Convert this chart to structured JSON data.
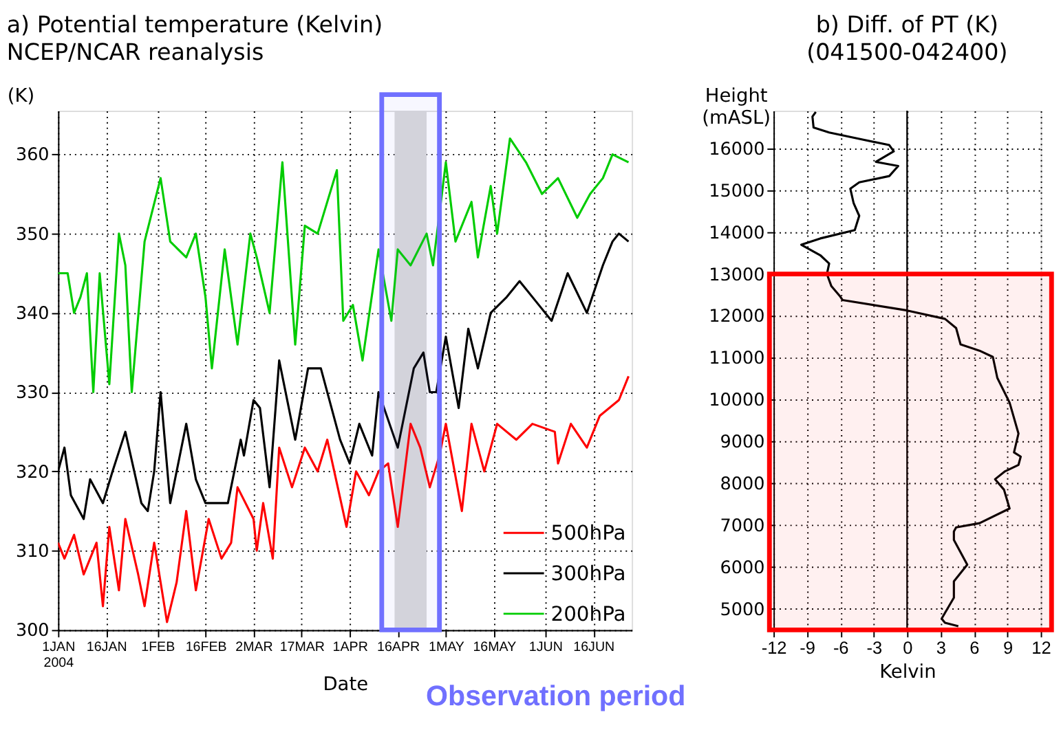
{
  "chart_data": [
    {
      "type": "line",
      "title": "a) Potential temperature (Kelvin)",
      "subtitle": "NCEP/NCAR reanalysis",
      "xlabel": "Date",
      "ylabel": "(K)",
      "xlim": [
        "2004-01-01",
        "2004-06-28"
      ],
      "xticks": [
        {
          "value": "2004-01-01",
          "label": "1JAN\n2004"
        },
        {
          "value": "2004-01-16",
          "label": "16JAN"
        },
        {
          "value": "2004-02-01",
          "label": "1FEB"
        },
        {
          "value": "2004-02-16",
          "label": "16FEB"
        },
        {
          "value": "2004-03-02",
          "label": "2MAR"
        },
        {
          "value": "2004-03-17",
          "label": "17MAR"
        },
        {
          "value": "2004-04-01",
          "label": "1APR"
        },
        {
          "value": "2004-04-16",
          "label": "16APR"
        },
        {
          "value": "2004-05-01",
          "label": "1MAY"
        },
        {
          "value": "2004-05-16",
          "label": "16MAY"
        },
        {
          "value": "2004-06-01",
          "label": "1JUN"
        },
        {
          "value": "2004-06-16",
          "label": "16JUN"
        }
      ],
      "ylim": [
        300,
        365.5
      ],
      "yticks": [
        300,
        310,
        320,
        330,
        340,
        350,
        360
      ],
      "grid": true,
      "legend": "bottom right",
      "line_style": "solid",
      "bands": [
        {
          "axis": "x",
          "from": "2004-04-15",
          "to": "2004-04-25",
          "color": "#d9d9d9"
        },
        {
          "axis": "x",
          "from": "2004-04-11",
          "to": "2004-04-29",
          "color": "#7070ff",
          "label": "Observation period"
        }
      ],
      "series": [
        {
          "name": "500hPa",
          "color": "#ff0000",
          "x": [
            "2004-01-01",
            "2004-01-03",
            "2004-01-06",
            "2004-01-09",
            "2004-01-13",
            "2004-01-15",
            "2004-01-17",
            "2004-01-20",
            "2004-01-22",
            "2004-01-26",
            "2004-01-28",
            "2004-01-31",
            "2004-02-04",
            "2004-02-07",
            "2004-02-10",
            "2004-02-13",
            "2004-02-17",
            "2004-02-21",
            "2004-02-24",
            "2004-02-26",
            "2004-03-02",
            "2004-03-03",
            "2004-03-05",
            "2004-03-08",
            "2004-03-10",
            "2004-03-14",
            "2004-03-18",
            "2004-03-22",
            "2004-03-25",
            "2004-03-31",
            "2004-04-03",
            "2004-04-07",
            "2004-04-10",
            "2004-04-13",
            "2004-04-16",
            "2004-04-20",
            "2004-04-23",
            "2004-04-26",
            "2004-04-29",
            "2004-05-01",
            "2004-05-06",
            "2004-05-09",
            "2004-05-13",
            "2004-05-17",
            "2004-05-23",
            "2004-05-28",
            "2004-06-04",
            "2004-06-05",
            "2004-06-09",
            "2004-06-14",
            "2004-06-18",
            "2004-06-24",
            "2004-06-27"
          ],
          "values": [
            311,
            309,
            312,
            307,
            311,
            303,
            313,
            305,
            314,
            307,
            303,
            311,
            301,
            306,
            315,
            305,
            314,
            309,
            311,
            318,
            314,
            310,
            316,
            309,
            323,
            318,
            323,
            320,
            324,
            313,
            320,
            317,
            320,
            321,
            313,
            326,
            323,
            318,
            322,
            326,
            315,
            326,
            320,
            326,
            324,
            326,
            325,
            321,
            326,
            323,
            327,
            329,
            332
          ]
        },
        {
          "name": "300hPa",
          "color": "#000000",
          "x": [
            "2004-01-01",
            "2004-01-03",
            "2004-01-05",
            "2004-01-09",
            "2004-01-11",
            "2004-01-15",
            "2004-01-18",
            "2004-01-22",
            "2004-01-27",
            "2004-01-29",
            "2004-01-31",
            "2004-02-02",
            "2004-02-05",
            "2004-02-10",
            "2004-02-13",
            "2004-02-16",
            "2004-02-23",
            "2004-02-27",
            "2004-02-28",
            "2004-03-02",
            "2004-03-04",
            "2004-03-07",
            "2004-03-10",
            "2004-03-15",
            "2004-03-19",
            "2004-03-23",
            "2004-03-29",
            "2004-04-01",
            "2004-04-04",
            "2004-04-08",
            "2004-04-10",
            "2004-04-16",
            "2004-04-21",
            "2004-04-24",
            "2004-04-26",
            "2004-04-28",
            "2004-05-01",
            "2004-05-05",
            "2004-05-08",
            "2004-05-11",
            "2004-05-15",
            "2004-05-20",
            "2004-05-24",
            "2004-05-30",
            "2004-06-03",
            "2004-06-08",
            "2004-06-14",
            "2004-06-19",
            "2004-06-22",
            "2004-06-24",
            "2004-06-27"
          ],
          "values": [
            320,
            323,
            317,
            314,
            319,
            316,
            320,
            325,
            316,
            315,
            320,
            330,
            316,
            326,
            319,
            316,
            316,
            324,
            322,
            329,
            328,
            318,
            334,
            324,
            333,
            333,
            324,
            321,
            326,
            322,
            330,
            323,
            333,
            335,
            330,
            330,
            337,
            328,
            338,
            333,
            340,
            342,
            344,
            341,
            339,
            345,
            340,
            346,
            349,
            350,
            349
          ]
        },
        {
          "name": "200hPa",
          "color": "#00cc00",
          "x": [
            "2004-01-01",
            "2004-01-04",
            "2004-01-06",
            "2004-01-08",
            "2004-01-10",
            "2004-01-12",
            "2004-01-14",
            "2004-01-17",
            "2004-01-20",
            "2004-01-22",
            "2004-01-24",
            "2004-01-28",
            "2004-02-02",
            "2004-02-05",
            "2004-02-10",
            "2004-02-13",
            "2004-02-16",
            "2004-02-18",
            "2004-02-22",
            "2004-02-26",
            "2004-03-01",
            "2004-03-03",
            "2004-03-07",
            "2004-03-11",
            "2004-03-15",
            "2004-03-18",
            "2004-03-22",
            "2004-03-28",
            "2004-03-30",
            "2004-04-02",
            "2004-04-05",
            "2004-04-10",
            "2004-04-14",
            "2004-04-16",
            "2004-04-20",
            "2004-04-25",
            "2004-04-27",
            "2004-05-01",
            "2004-05-04",
            "2004-05-09",
            "2004-05-11",
            "2004-05-15",
            "2004-05-17",
            "2004-05-21",
            "2004-05-26",
            "2004-05-31",
            "2004-06-05",
            "2004-06-11",
            "2004-06-15",
            "2004-06-19",
            "2004-06-22",
            "2004-06-27"
          ],
          "values": [
            345,
            345,
            340,
            342,
            345,
            330,
            345,
            331,
            350,
            346,
            330,
            349,
            357,
            349,
            347,
            350,
            342,
            333,
            348,
            336,
            350,
            347,
            340,
            359,
            336,
            351,
            350,
            358,
            339,
            341,
            334,
            348,
            339,
            348,
            346,
            350,
            346,
            359,
            349,
            354,
            347,
            356,
            350,
            362,
            359,
            355,
            357,
            352,
            355,
            357,
            360,
            359
          ]
        }
      ]
    },
    {
      "type": "line",
      "title": "b) Diff. of PT (K)",
      "subtitle": "(041500-042400)",
      "xlabel": "Kelvin",
      "ylabel": "Height\n(mASL)",
      "xlim": [
        -12,
        12
      ],
      "xticks": [
        -12,
        -9,
        -6,
        -3,
        0,
        3,
        6,
        9,
        12
      ],
      "ylim": [
        4500,
        16900
      ],
      "yticks": [
        5000,
        6000,
        7000,
        8000,
        9000,
        10000,
        11000,
        12000,
        13000,
        14000,
        15000,
        16000
      ],
      "grid": true,
      "line_style": "solid",
      "ref_lines": [
        {
          "axis": "x",
          "value": 0,
          "color": "#000000"
        }
      ],
      "bands": [
        {
          "axis": "y",
          "from": 4500,
          "to": 13000,
          "color": "#ff0000"
        }
      ],
      "series": [
        {
          "color": "#000000",
          "x": [
            -8.2,
            -8.5,
            -8.4,
            -7.0,
            -4.3,
            -1.6,
            -1.2,
            -2.8,
            -0.8,
            -1.6,
            -4.3,
            -5.1,
            -4.8,
            -4.3,
            -4.7,
            -7.8,
            -9.5,
            -7.8,
            -7.0,
            -7.2,
            -6.8,
            -6.0,
            -5.8,
            0.0,
            3.4,
            4.4,
            4.8,
            6.5,
            7.7,
            8.1,
            9.2,
            10.0,
            9.6,
            10.2,
            10.0,
            8.8,
            7.9,
            8.7,
            9.2,
            6.5,
            4.4,
            4.2,
            4.2,
            5.4,
            4.2,
            4.2,
            3.1,
            3.4,
            4.6
          ],
          "values": [
            16870,
            16760,
            16500,
            16380,
            16230,
            16080,
            15930,
            15680,
            15580,
            15340,
            15190,
            15040,
            14690,
            14390,
            14050,
            13850,
            13700,
            13450,
            13250,
            13000,
            12710,
            12460,
            12380,
            12130,
            11930,
            11710,
            11320,
            11170,
            11020,
            10520,
            9930,
            9190,
            8740,
            8640,
            8440,
            8290,
            8100,
            7850,
            7400,
            7050,
            6950,
            6850,
            6650,
            6060,
            5660,
            5270,
            4770,
            4670,
            4590
          ]
        }
      ]
    }
  ]
}
